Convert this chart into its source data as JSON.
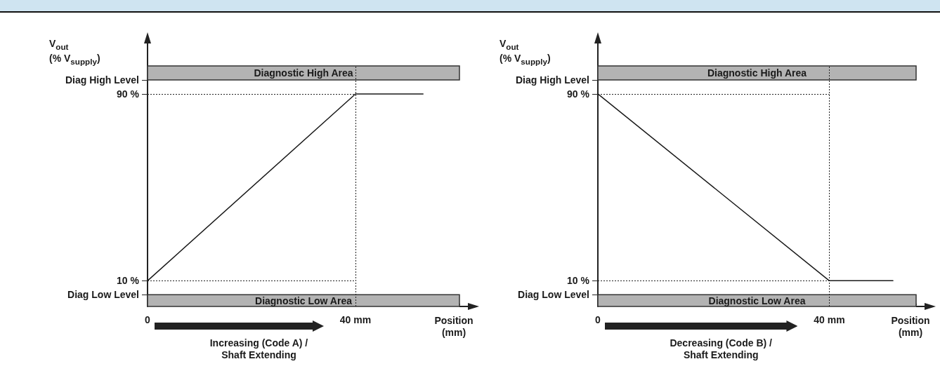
{
  "chart_data": [
    {
      "type": "line",
      "ylabel": "V$_{out}$ (% V$_{supply}$)",
      "xlabel": "Position (mm)",
      "x": [
        0,
        40,
        53
      ],
      "series": [
        {
          "color": "#1a1a1a",
          "values": [
            10,
            90,
            90
          ]
        }
      ],
      "xlim": [
        0,
        60
      ],
      "xticks": [
        0,
        {
          "value": 40,
          "label": "40 mm"
        }
      ],
      "ylim": [
        -1,
        108
      ],
      "yticks": [
        {
          "value": 96,
          "label": "Diag High Level"
        },
        {
          "value": 90,
          "label": "90 %"
        },
        {
          "value": 10,
          "label": "10 %"
        },
        {
          "value": 4,
          "label": "Diag Low Level"
        }
      ],
      "bands": [
        {
          "axis": "y",
          "from": 96,
          "to": 102,
          "label": "Diagnostic High Area",
          "color": "#b3b3b3"
        },
        {
          "axis": "y",
          "from": -1,
          "to": 4,
          "label": "Diagnostic Low Area",
          "color": "#b3b3b3"
        }
      ],
      "ref_lines": [
        {
          "axis": "x",
          "value": 40,
          "line_style": "dotted"
        },
        {
          "axis": "y",
          "value": 90,
          "line_style": "dotted"
        },
        {
          "axis": "y",
          "value": 10,
          "line_style": "dotted"
        }
      ],
      "annotations": [
        "Increasing (Code A) / Shaft Extending"
      ],
      "marker": "none",
      "line_style": "solid",
      "grid": false
    },
    {
      "type": "line",
      "ylabel": "V$_{out}$ (% V$_{supply}$)",
      "xlabel": "Position (mm)",
      "x": [
        0,
        40,
        51
      ],
      "series": [
        {
          "color": "#1a1a1a",
          "values": [
            90,
            10,
            10
          ]
        }
      ],
      "xlim": [
        0,
        55
      ],
      "xticks": [
        0,
        {
          "value": 40,
          "label": "40 mm"
        }
      ],
      "ylim": [
        -1,
        108
      ],
      "yticks": [
        {
          "value": 96,
          "label": "Diag High Level"
        },
        {
          "value": 90,
          "label": "90 %"
        },
        {
          "value": 10,
          "label": "10 %"
        },
        {
          "value": 4,
          "label": "Diag Low Level"
        }
      ],
      "bands": [
        {
          "axis": "y",
          "from": 96,
          "to": 102,
          "label": "Diagnostic High Area",
          "color": "#b3b3b3"
        },
        {
          "axis": "y",
          "from": -1,
          "to": 4,
          "label": "Diagnostic Low Area",
          "color": "#b3b3b3"
        }
      ],
      "ref_lines": [
        {
          "axis": "x",
          "value": 40,
          "line_style": "dotted"
        },
        {
          "axis": "y",
          "value": 90,
          "line_style": "dotted"
        },
        {
          "axis": "y",
          "value": 10,
          "line_style": "dotted"
        }
      ],
      "annotations": [
        "Decreasing (Code B) / Shaft Extending"
      ],
      "marker": "none",
      "line_style": "solid",
      "grid": false
    }
  ]
}
